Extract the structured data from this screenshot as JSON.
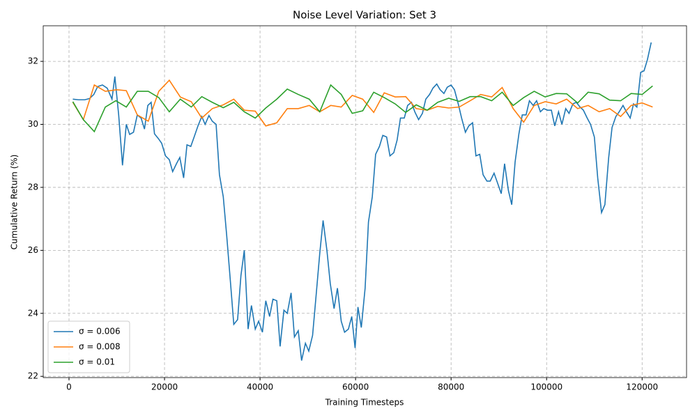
{
  "chart_data": {
    "type": "line",
    "title": "Noise Level Variation: Set 3",
    "x_label": "Training Timesteps",
    "y_label": "Cumulative Return (%)",
    "xlim": [
      -5400,
      129300
    ],
    "ylim": [
      21.96,
      33.13
    ],
    "xticks": [
      0,
      20000,
      40000,
      60000,
      80000,
      100000,
      120000
    ],
    "yticks": [
      22,
      24,
      26,
      28,
      30,
      32
    ],
    "grid": true,
    "legend": "lower left",
    "series": [
      {
        "name": "σ = 0.006",
        "color": "#1f77b4",
        "x": [
          800,
          2000,
          3300,
          4300,
          5200,
          6000,
          7000,
          8000,
          9000,
          9600,
          10400,
          11200,
          12000,
          12700,
          13500,
          14300,
          15100,
          15800,
          16500,
          17200,
          17900,
          18700,
          19400,
          20200,
          21000,
          21700,
          22500,
          23200,
          24000,
          24700,
          25500,
          26200,
          27000,
          27800,
          28500,
          29300,
          30000,
          30800,
          31500,
          32300,
          33000,
          33800,
          34500,
          35300,
          36000,
          36700,
          37500,
          38200,
          39000,
          39700,
          40500,
          41200,
          42000,
          42700,
          43500,
          44200,
          45000,
          45700,
          46500,
          47200,
          48000,
          48700,
          49500,
          50200,
          51000,
          51700,
          52500,
          53200,
          54000,
          54700,
          55500,
          56200,
          57000,
          57700,
          58500,
          59200,
          59900,
          60500,
          61200,
          62000,
          62700,
          63500,
          64200,
          65000,
          65700,
          66500,
          67200,
          68000,
          68700,
          69400,
          70200,
          70900,
          71700,
          72400,
          73200,
          74000,
          74700,
          75500,
          76200,
          77000,
          77700,
          78500,
          79200,
          80000,
          80700,
          81500,
          82200,
          83000,
          83700,
          84500,
          85200,
          86000,
          86700,
          87500,
          88200,
          89000,
          89700,
          90500,
          91200,
          92000,
          92700,
          93400,
          94200,
          94900,
          95700,
          96400,
          97200,
          97900,
          98700,
          99400,
          100200,
          101000,
          101700,
          102500,
          103200,
          104000,
          104700,
          105500,
          106200,
          107000,
          107700,
          108500,
          109200,
          110000,
          110700,
          111500,
          112200,
          113000,
          113700,
          114500,
          115200,
          116000,
          116700,
          117500,
          118200,
          118900,
          119700,
          120400,
          121100,
          121900
        ],
        "values": [
          30.8,
          30.78,
          30.78,
          30.82,
          30.95,
          31.2,
          31.25,
          31.15,
          30.8,
          31.52,
          30.3,
          28.7,
          30.0,
          29.68,
          29.75,
          30.3,
          30.2,
          29.85,
          30.6,
          30.7,
          29.7,
          29.55,
          29.4,
          29.0,
          28.88,
          28.5,
          28.75,
          28.95,
          28.3,
          29.35,
          29.3,
          29.6,
          29.95,
          30.25,
          30.0,
          30.28,
          30.1,
          30.0,
          28.4,
          27.7,
          26.5,
          25.0,
          23.65,
          23.8,
          25.2,
          26.0,
          23.5,
          24.25,
          23.5,
          23.75,
          23.4,
          24.4,
          23.9,
          24.45,
          24.4,
          22.95,
          24.1,
          24.0,
          24.65,
          23.25,
          23.45,
          22.5,
          23.05,
          22.8,
          23.3,
          24.5,
          25.9,
          26.95,
          26.0,
          24.95,
          24.15,
          24.8,
          23.75,
          23.4,
          23.5,
          23.9,
          22.9,
          24.2,
          23.55,
          24.8,
          26.9,
          27.7,
          29.05,
          29.3,
          29.65,
          29.6,
          29.0,
          29.1,
          29.5,
          30.2,
          30.2,
          30.6,
          30.7,
          30.4,
          30.15,
          30.35,
          30.8,
          30.95,
          31.15,
          31.28,
          31.1,
          30.98,
          31.18,
          31.25,
          31.1,
          30.65,
          30.2,
          29.75,
          29.95,
          30.05,
          29.0,
          29.05,
          28.4,
          28.2,
          28.2,
          28.45,
          28.15,
          27.8,
          28.75,
          27.9,
          27.45,
          28.8,
          29.7,
          30.3,
          30.3,
          30.75,
          30.6,
          30.75,
          30.4,
          30.5,
          30.45,
          30.45,
          29.95,
          30.4,
          30.0,
          30.5,
          30.35,
          30.65,
          30.7,
          30.55,
          30.45,
          30.2,
          30.0,
          29.6,
          28.3,
          27.2,
          27.45,
          28.95,
          29.9,
          30.25,
          30.4,
          30.6,
          30.4,
          30.2,
          30.65,
          30.55,
          31.65,
          31.7,
          32.05,
          32.6
        ]
      },
      {
        "name": "σ = 0.008",
        "color": "#ff7f0e",
        "x": [
          800,
          3000,
          5300,
          7600,
          10000,
          12000,
          14300,
          16600,
          18800,
          21000,
          23300,
          25600,
          27800,
          30000,
          32300,
          34500,
          36700,
          39000,
          41200,
          43500,
          45700,
          48000,
          50300,
          52500,
          54800,
          57000,
          59300,
          61500,
          63800,
          66000,
          68300,
          70500,
          72700,
          75000,
          77200,
          79500,
          81700,
          84000,
          86200,
          88500,
          90700,
          93000,
          95200,
          97400,
          99700,
          102000,
          104200,
          106500,
          108700,
          111000,
          113200,
          115500,
          117700,
          120000,
          122200
        ],
        "values": [
          30.7,
          30.15,
          31.25,
          31.05,
          31.1,
          31.07,
          30.3,
          30.1,
          31.05,
          31.4,
          30.87,
          30.72,
          30.2,
          30.5,
          30.62,
          30.8,
          30.45,
          30.42,
          29.95,
          30.05,
          30.5,
          30.5,
          30.6,
          30.4,
          30.6,
          30.55,
          30.92,
          30.8,
          30.38,
          31.0,
          30.87,
          30.88,
          30.5,
          30.45,
          30.57,
          30.52,
          30.55,
          30.75,
          30.95,
          30.87,
          31.17,
          30.5,
          30.07,
          30.6,
          30.72,
          30.65,
          30.8,
          30.5,
          30.6,
          30.4,
          30.5,
          30.25,
          30.6,
          30.68,
          30.55
        ]
      },
      {
        "name": "σ = 0.01",
        "color": "#2ca02c",
        "x": [
          800,
          3000,
          5300,
          7600,
          9800,
          12000,
          14300,
          16600,
          18800,
          21000,
          23300,
          25600,
          27800,
          30000,
          32300,
          34500,
          36700,
          39000,
          41200,
          43500,
          45700,
          48000,
          50300,
          52500,
          54800,
          57000,
          59300,
          61500,
          63800,
          66000,
          68300,
          70500,
          72700,
          75000,
          77200,
          79500,
          81700,
          84000,
          86200,
          88500,
          90700,
          93000,
          95200,
          97400,
          99700,
          102000,
          104200,
          106500,
          108700,
          111000,
          113200,
          115500,
          117700,
          120000,
          122200
        ],
        "values": [
          30.72,
          30.15,
          29.77,
          30.55,
          30.75,
          30.55,
          31.05,
          31.05,
          30.85,
          30.4,
          30.8,
          30.55,
          30.88,
          30.7,
          30.53,
          30.7,
          30.4,
          30.2,
          30.52,
          30.8,
          31.12,
          30.95,
          30.8,
          30.4,
          31.25,
          30.95,
          30.35,
          30.43,
          31.02,
          30.85,
          30.65,
          30.38,
          30.62,
          30.45,
          30.7,
          30.83,
          30.73,
          30.88,
          30.88,
          30.75,
          31.02,
          30.6,
          30.85,
          31.05,
          30.87,
          30.98,
          30.97,
          30.68,
          31.02,
          30.97,
          30.77,
          30.75,
          30.98,
          30.95,
          31.22
        ]
      }
    ]
  }
}
